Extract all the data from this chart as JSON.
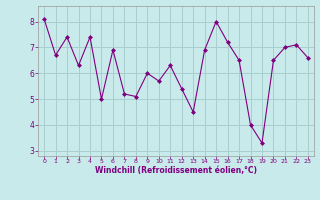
{
  "x": [
    0,
    1,
    2,
    3,
    4,
    5,
    6,
    7,
    8,
    9,
    10,
    11,
    12,
    13,
    14,
    15,
    16,
    17,
    18,
    19,
    20,
    21,
    22,
    23
  ],
  "y": [
    8.1,
    6.7,
    7.4,
    6.3,
    7.4,
    5.0,
    6.9,
    5.2,
    5.1,
    6.0,
    5.7,
    6.3,
    5.4,
    4.5,
    6.9,
    8.0,
    7.2,
    6.5,
    4.0,
    3.3,
    6.5,
    7.0,
    7.1,
    6.6
  ],
  "line_color": "#800080",
  "marker_color": "#800080",
  "bg_color": "#c8eaea",
  "grid_color": "#a8cece",
  "xlabel": "Windchill (Refroidissement éolien,°C)",
  "xlabel_color": "#800080",
  "xtick_color": "#800080",
  "ytick_color": "#800080",
  "ylim": [
    2.8,
    8.6
  ],
  "xlim": [
    -0.5,
    23.5
  ],
  "yticks": [
    3,
    4,
    5,
    6,
    7,
    8
  ],
  "xticks": [
    0,
    1,
    2,
    3,
    4,
    5,
    6,
    7,
    8,
    9,
    10,
    11,
    12,
    13,
    14,
    15,
    16,
    17,
    18,
    19,
    20,
    21,
    22,
    23
  ],
  "xtick_labels": [
    "0",
    "1",
    "2",
    "3",
    "4",
    "5",
    "6",
    "7",
    "8",
    "9",
    "10",
    "11",
    "12",
    "13",
    "14",
    "15",
    "16",
    "17",
    "18",
    "19",
    "20",
    "21",
    "22",
    "23"
  ]
}
